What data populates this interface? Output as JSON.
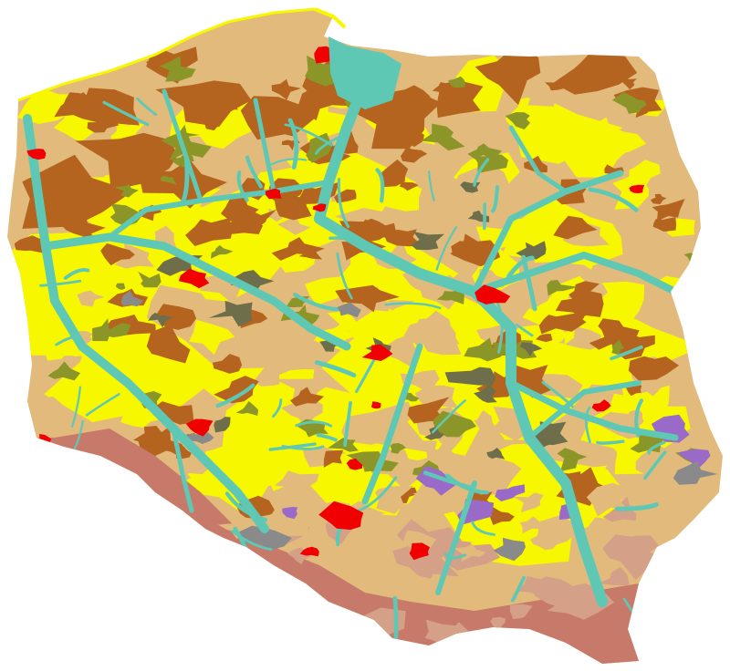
{
  "map": {
    "region": "Poland",
    "legend_visible": false,
    "palette": {
      "background": "#ffffff",
      "yellow_soil": "#f7f700",
      "light_brown_soil": "#e2bb7c",
      "brown_soil": "#b4641e",
      "olive_soil": "#8c9628",
      "dark_olive_soil": "#6e6e4a",
      "river_valley": "#5fc8b4",
      "urban_red": "#f00000",
      "mountain_pink": "#c87a6a",
      "mountain_salmon": "#d4a088",
      "purple_soil": "#9a6ac8",
      "grey_soil": "#8a8a8a"
    }
  }
}
